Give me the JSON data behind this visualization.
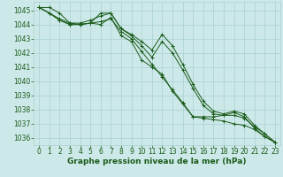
{
  "xlabel": "Graphe pression niveau de la mer (hPa)",
  "x": [
    0,
    1,
    2,
    3,
    4,
    5,
    6,
    7,
    8,
    9,
    10,
    11,
    12,
    13,
    14,
    15,
    16,
    17,
    18,
    19,
    20,
    21,
    22,
    23
  ],
  "lines": [
    [
      1045.2,
      1045.2,
      1044.8,
      1044.1,
      1044.0,
      1044.1,
      1044.0,
      1044.5,
      1043.2,
      1042.8,
      1041.5,
      1041.0,
      1040.5,
      1039.3,
      1038.4,
      1037.5,
      1037.5,
      1037.5,
      1037.6,
      1037.6,
      1037.4,
      1036.8,
      1036.3,
      1035.7
    ],
    [
      1045.2,
      1044.8,
      1044.3,
      1044.0,
      1044.0,
      1044.1,
      1044.2,
      1044.4,
      1043.5,
      1043.0,
      1042.1,
      1041.2,
      1040.3,
      1039.4,
      1038.5,
      1037.5,
      1037.4,
      1037.3,
      1037.2,
      1037.0,
      1036.9,
      1036.6,
      1036.1,
      1035.7
    ],
    [
      1045.2,
      1044.8,
      1044.3,
      1044.0,
      1044.0,
      1044.1,
      1044.8,
      1044.8,
      1043.7,
      1043.2,
      1042.5,
      1041.7,
      1042.8,
      1042.0,
      1040.8,
      1039.5,
      1038.3,
      1037.7,
      1037.6,
      1037.8,
      1037.5,
      1036.7,
      1036.1,
      1035.7
    ],
    [
      1045.2,
      1044.8,
      1044.4,
      1044.1,
      1044.1,
      1044.3,
      1044.6,
      1044.8,
      1043.7,
      1043.3,
      1042.8,
      1042.2,
      1043.3,
      1042.5,
      1041.2,
      1039.8,
      1038.6,
      1037.9,
      1037.7,
      1037.9,
      1037.7,
      1036.9,
      1036.3,
      1035.7
    ]
  ],
  "ylim": [
    1035.5,
    1045.6
  ],
  "yticks": [
    1036,
    1037,
    1038,
    1039,
    1040,
    1041,
    1042,
    1043,
    1044,
    1045
  ],
  "xticks": [
    0,
    1,
    2,
    3,
    4,
    5,
    6,
    7,
    8,
    9,
    10,
    11,
    12,
    13,
    14,
    15,
    16,
    17,
    18,
    19,
    20,
    21,
    22,
    23
  ],
  "line_color": "#1a5c1a",
  "marker": "+",
  "marker_size": 3,
  "linewidth": 0.7,
  "bg_color": "#cde8e8",
  "grid_color": "#a8d0d0",
  "tick_label_color": "#1a5c1a",
  "xlabel_color": "#1a5c1a",
  "xlabel_fontsize": 6.5,
  "tick_fontsize": 5.5
}
